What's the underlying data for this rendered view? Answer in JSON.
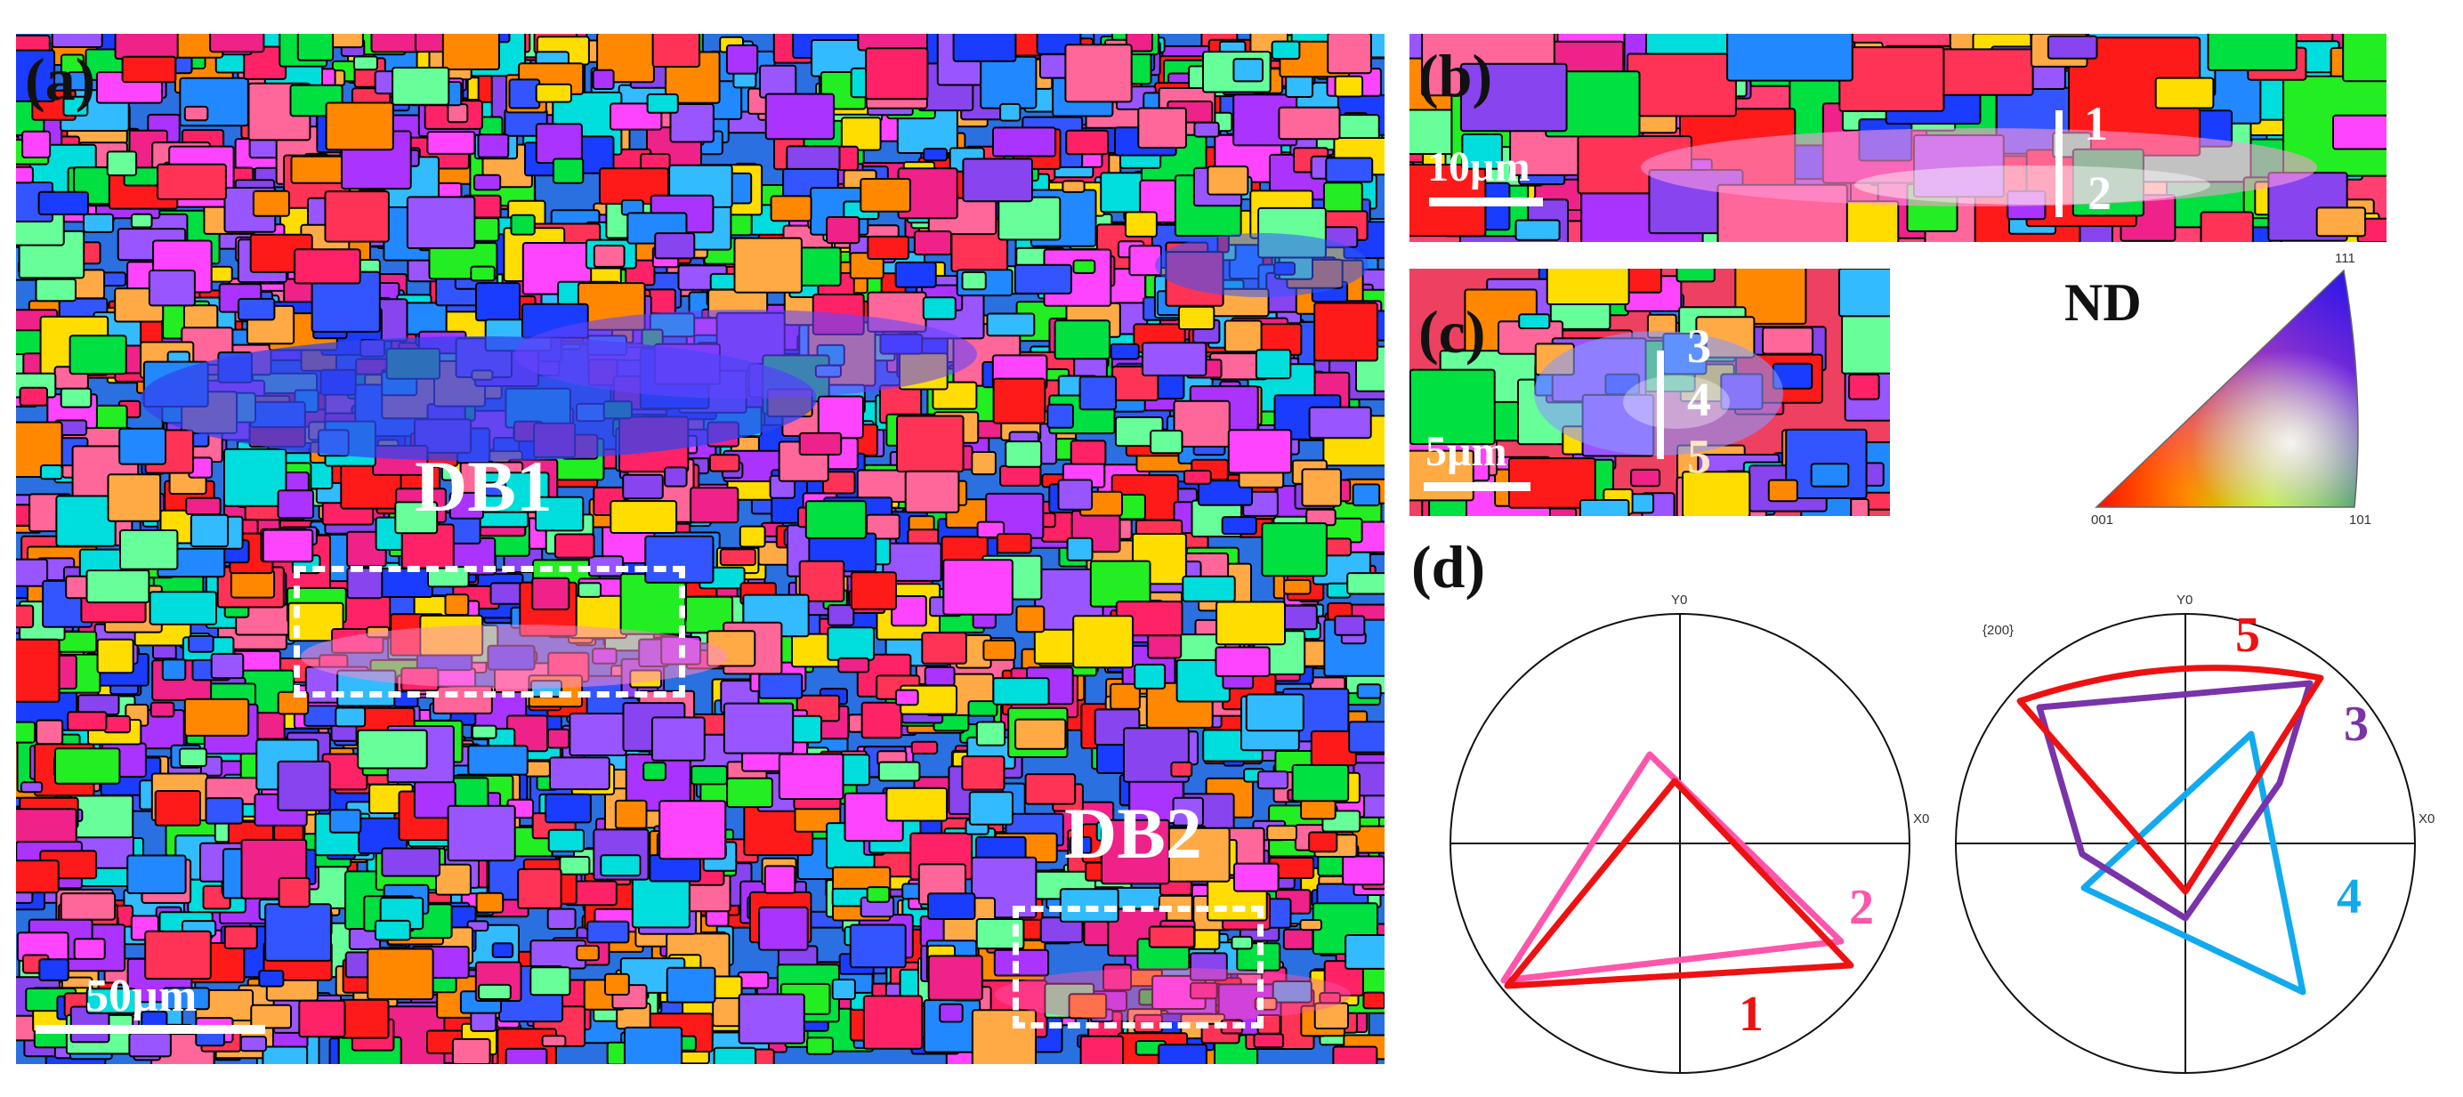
{
  "figure": {
    "panel_a": {
      "label": "(a)",
      "scale_bar": "50µm",
      "regions": [
        "DB1",
        "DB2"
      ]
    },
    "panel_b": {
      "label": "(b)",
      "scale_bar": "10µm",
      "points": [
        "1",
        "2"
      ]
    },
    "panel_c": {
      "label": "(c)",
      "scale_bar": "5µm",
      "points": [
        "3",
        "4",
        "5"
      ]
    },
    "ipf_key": {
      "title": "ND",
      "corners": [
        "111",
        "001",
        "101"
      ]
    },
    "panel_d": {
      "label": "(d)",
      "plane": "{200}",
      "axis_y": "Y0",
      "axis_x": "X0",
      "left_figure_labels": [
        "2",
        "1"
      ],
      "right_figure_labels": [
        "5",
        "3",
        "4"
      ]
    },
    "colors": {
      "point1": "#ee1111",
      "point2": "#ff55aa",
      "point3": "#7a33aa",
      "point4": "#11aaee",
      "point5": "#ee1111",
      "grain_boundary": "#000000"
    }
  }
}
